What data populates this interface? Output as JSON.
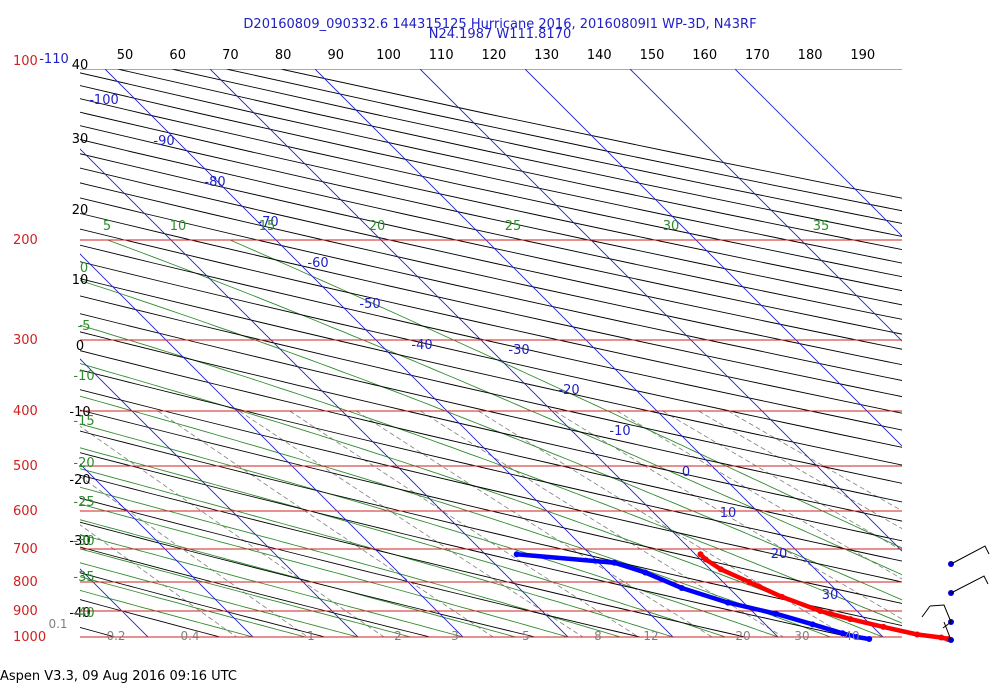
{
  "chart_data": {
    "type": "skew-t",
    "title_line1": "D20160809_090332.6 144315125 Hurricane 2016, 20160809I1 WP-3D, N43RF",
    "title_line2": "N24.1987 W111.8170",
    "footer": "Aspen V3.3, 09 Aug 2016  09:16 UTC",
    "pressure_levels": [
      100,
      200,
      300,
      400,
      500,
      600,
      700,
      800,
      900,
      1000
    ],
    "pressure_labels": [
      "100",
      "200",
      "300",
      "400",
      "500",
      "600",
      "700",
      "800",
      "900",
      "1000"
    ],
    "left_temp_labels": [
      "40",
      "30",
      "20",
      "10",
      "0",
      "-10",
      "-20",
      "-30",
      "-40"
    ],
    "theta_labels": [
      "50",
      "60",
      "70",
      "80",
      "90",
      "100",
      "110",
      "120",
      "130",
      "140",
      "150",
      "160",
      "170",
      "180",
      "190"
    ],
    "isotherm_labels": [
      "-110",
      "-100",
      "-90",
      "-80",
      "-70",
      "-60",
      "-50",
      "-40",
      "-30",
      "-20",
      "-10",
      "0",
      "10",
      "20",
      "30"
    ],
    "theta_e_labels": [
      "5",
      "10",
      "15",
      "20",
      "25",
      "30",
      "35"
    ],
    "moist_adiabat_left_labels": [
      "0",
      "-5",
      "-10",
      "-15",
      "-20",
      "-25",
      "-30",
      "-35",
      "-40"
    ],
    "mixing_ratio_labels": [
      "0.1",
      "0.2",
      "0.4",
      "1",
      "2",
      "3",
      "5",
      "8",
      "12",
      "20",
      "30",
      "40"
    ],
    "temperature_profile": [
      {
        "p": 715,
        "t": 10.5
      },
      {
        "p": 730,
        "t": 10.5
      },
      {
        "p": 760,
        "t": 11.0
      },
      {
        "p": 800,
        "t": 12.5
      },
      {
        "p": 850,
        "t": 14.2
      },
      {
        "p": 900,
        "t": 16.5
      },
      {
        "p": 930,
        "t": 18.6
      },
      {
        "p": 960,
        "t": 21.0
      },
      {
        "p": 990,
        "t": 23.5
      },
      {
        "p": 1002,
        "t": 25.5
      },
      {
        "p": 1008,
        "t": 26.0
      }
    ],
    "dewpoint_profile": [
      {
        "p": 715,
        "t": -7.0
      },
      {
        "p": 740,
        "t": 1.5
      },
      {
        "p": 770,
        "t": 3.5
      },
      {
        "p": 820,
        "t": 5.5
      },
      {
        "p": 870,
        "t": 8.5
      },
      {
        "p": 910,
        "t": 12.0
      },
      {
        "p": 950,
        "t": 14.5
      },
      {
        "p": 985,
        "t": 16.5
      },
      {
        "p": 1000,
        "t": 17.5
      },
      {
        "p": 1008,
        "t": 18.5
      }
    ],
    "colors": {
      "isobar": "#d02020",
      "isotherm": "#2020c8",
      "dry_adiabat": "#000000",
      "moist_adiabat": "#2e8b2e",
      "mixing_ratio": "#808080",
      "temperature": "#ff0000",
      "dewpoint": "#0000ff",
      "pressure_label": "#d02020"
    }
  }
}
